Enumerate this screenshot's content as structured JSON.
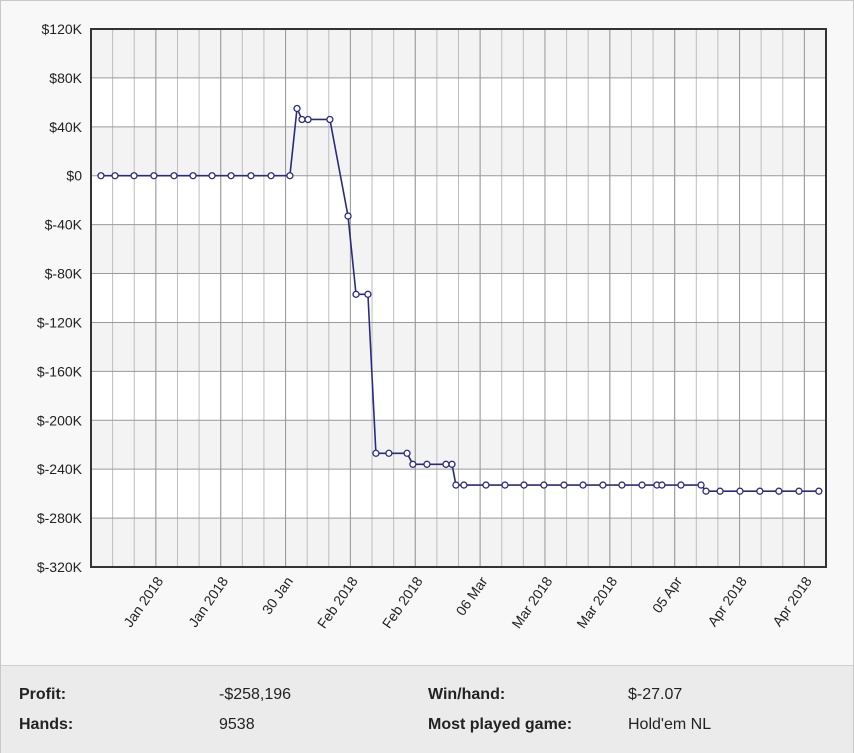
{
  "chart_data": {
    "type": "line",
    "x": [
      0.46,
      1.11,
      1.99,
      2.91,
      3.84,
      4.72,
      5.6,
      6.48,
      7.4,
      8.33,
      9.2,
      9.53,
      9.76,
      10.04,
      11.05,
      11.89,
      12.26,
      12.81,
      13.18,
      13.78,
      14.62,
      14.89,
      15.54,
      16.42,
      16.7,
      16.88,
      17.25,
      18.27,
      19.15,
      20.03,
      20.95,
      21.88,
      22.76,
      23.68,
      24.56,
      25.49,
      26.18,
      26.41,
      27.29,
      28.22,
      28.45,
      29.1,
      30.02,
      30.94,
      31.82,
      32.75,
      33.67
    ],
    "series": [
      {
        "color": "#2b2b7e",
        "values": [
          0,
          0,
          0,
          0,
          0,
          0,
          0,
          0,
          0,
          0,
          0,
          55000,
          46000,
          46000,
          46000,
          -33000,
          -97000,
          -97000,
          -227000,
          -227000,
          -227000,
          -236000,
          -236000,
          -236000,
          -236000,
          -253000,
          -253000,
          -253000,
          -253000,
          -253000,
          -253000,
          -253000,
          -253000,
          -253000,
          -253000,
          -253000,
          -253000,
          -253000,
          -253000,
          -253000,
          -258000,
          -258000,
          -258000,
          -258000,
          -258000,
          -258000,
          -258000
        ]
      }
    ],
    "xlim": [
      0,
      34
    ],
    "xticks": [
      {
        "value": 3,
        "label": "Jan 2018"
      },
      {
        "value": 6,
        "label": "Jan 2018"
      },
      {
        "value": 9,
        "label": "30 Jan"
      },
      {
        "value": 12,
        "label": "Feb 2018"
      },
      {
        "value": 15,
        "label": "Feb 2018"
      },
      {
        "value": 18,
        "label": "06 Mar"
      },
      {
        "value": 21,
        "label": "Mar 2018"
      },
      {
        "value": 24,
        "label": "Mar 2018"
      },
      {
        "value": 27,
        "label": "05 Apr"
      },
      {
        "value": 30,
        "label": "Apr 2018"
      },
      {
        "value": 33,
        "label": "Apr 2018"
      }
    ],
    "ylim": [
      -320000,
      120000
    ],
    "yticks": [
      {
        "value": 120000,
        "label": "$120K"
      },
      {
        "value": 80000,
        "label": "$80K"
      },
      {
        "value": 40000,
        "label": "$40K"
      },
      {
        "value": 0,
        "label": "$0"
      },
      {
        "value": -40000,
        "label": "$-40K"
      },
      {
        "value": -80000,
        "label": "$-80K"
      },
      {
        "value": -120000,
        "label": "$-120K"
      },
      {
        "value": -160000,
        "label": "$-160K"
      },
      {
        "value": -200000,
        "label": "$-200K"
      },
      {
        "value": -240000,
        "label": "$-240K"
      },
      {
        "value": -280000,
        "label": "$-280K"
      },
      {
        "value": -320000,
        "label": "$-320K"
      }
    ],
    "grid": true
  },
  "summary": {
    "rows": [
      [
        {
          "label": "Profit:",
          "value": "-$258,196"
        },
        {
          "label": "Win/hand:",
          "value": "$-27.07"
        }
      ],
      [
        {
          "label": "Hands:",
          "value": "9538"
        },
        {
          "label": "Most played game:",
          "value": "Hold'em NL"
        }
      ]
    ]
  }
}
